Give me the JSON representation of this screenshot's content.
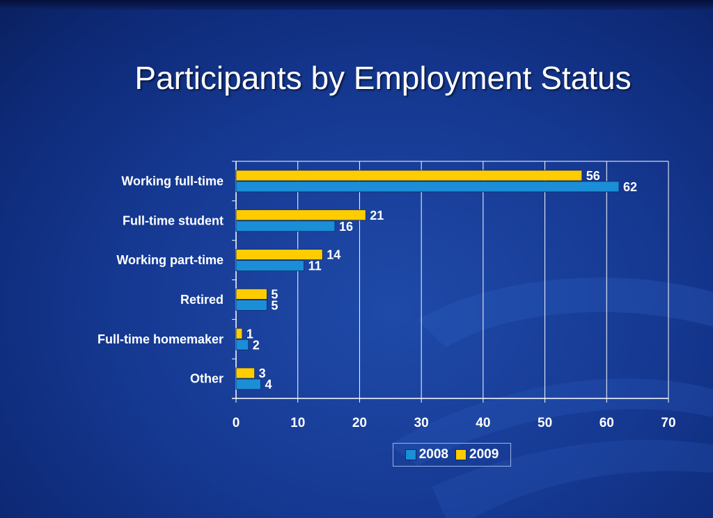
{
  "slide": {
    "title": "Participants by Employment Status"
  },
  "colors": {
    "series_2008": "#1a8ed6",
    "series_2009": "#ffcc00",
    "gridline": "#ffffff",
    "background": "#163a94"
  },
  "chart_data": {
    "type": "bar",
    "orientation": "horizontal",
    "title": "",
    "xlabel": "",
    "ylabel": "",
    "xlim": [
      0,
      70
    ],
    "x_ticks": [
      0,
      10,
      20,
      30,
      40,
      50,
      60,
      70
    ],
    "grid": true,
    "legend_position": "bottom-center",
    "categories": [
      "Working full-time",
      "Full-time student",
      "Working part-time",
      "Retired",
      "Full-time homemaker",
      "Other"
    ],
    "series": [
      {
        "name": "2008",
        "values": [
          62,
          16,
          11,
          5,
          2,
          4
        ]
      },
      {
        "name": "2009",
        "values": [
          56,
          21,
          14,
          5,
          1,
          3
        ]
      }
    ]
  }
}
